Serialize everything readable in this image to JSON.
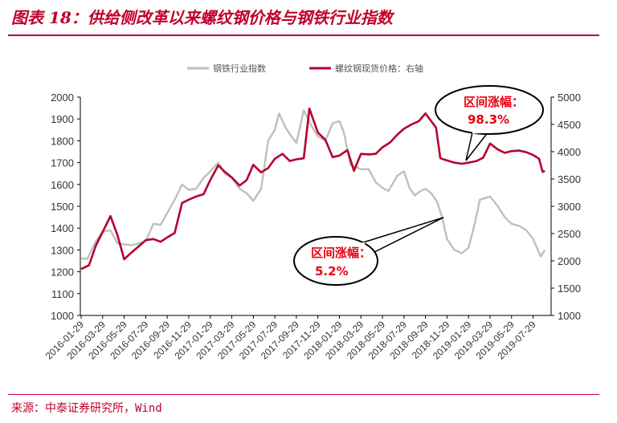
{
  "header": {
    "title": "图表 18：供给侧改革以来螺纹钢价格与钢铁行业指数"
  },
  "footer": {
    "source": "来源：中泰证券研究所，Wind"
  },
  "annotations": [
    {
      "label": "区间涨幅：",
      "value": "98.3%"
    },
    {
      "label": "区间涨幅：",
      "value": "5.2%"
    }
  ],
  "colors": {
    "index_line": "#bfbfbf",
    "rebar_line": "#b5002e",
    "accent": "#c0002b",
    "annotation_text": "#e60012"
  },
  "chart_data": {
    "type": "line",
    "x": [
      "2016-01-29",
      "2016-03-29",
      "2016-05-29",
      "2016-07-29",
      "2016-09-29",
      "2016-11-29",
      "2017-01-29",
      "2017-03-29",
      "2017-05-29",
      "2017-07-29",
      "2017-09-29",
      "2017-11-29",
      "2018-01-29",
      "2018-03-29",
      "2018-05-29",
      "2018-07-29",
      "2018-09-29",
      "2018-11-29",
      "2019-01-29",
      "2019-03-29",
      "2019-05-29",
      "2019-07-29"
    ],
    "y_left": {
      "ticks": [
        1000,
        1100,
        1200,
        1300,
        1400,
        1500,
        1600,
        1700,
        1800,
        1900,
        2000
      ],
      "range": [
        1000,
        2000
      ]
    },
    "y_right": {
      "ticks": [
        1000,
        1500,
        2000,
        2500,
        3000,
        3500,
        4000,
        4500,
        5000
      ],
      "range": [
        1000,
        5000
      ]
    },
    "legend_position": "top-center",
    "grid": false,
    "series": [
      {
        "name": "钢铁行业指数",
        "axis": "left",
        "color": "#bfbfbf",
        "values": [
          [
            "2016-01-29",
            1262
          ],
          [
            "2016-02-15",
            1258
          ],
          [
            "2016-03-10",
            1340
          ],
          [
            "2016-03-29",
            1385
          ],
          [
            "2016-04-20",
            1390
          ],
          [
            "2016-05-10",
            1330
          ],
          [
            "2016-05-29",
            1325
          ],
          [
            "2016-06-20",
            1322
          ],
          [
            "2016-07-10",
            1330
          ],
          [
            "2016-07-29",
            1340
          ],
          [
            "2016-08-20",
            1420
          ],
          [
            "2016-09-10",
            1415
          ],
          [
            "2016-09-29",
            1470
          ],
          [
            "2016-10-20",
            1530
          ],
          [
            "2016-11-10",
            1600
          ],
          [
            "2016-11-29",
            1575
          ],
          [
            "2016-12-20",
            1580
          ],
          [
            "2017-01-10",
            1630
          ],
          [
            "2017-01-29",
            1660
          ],
          [
            "2017-02-20",
            1700
          ],
          [
            "2017-03-10",
            1650
          ],
          [
            "2017-03-29",
            1630
          ],
          [
            "2017-04-20",
            1580
          ],
          [
            "2017-05-10",
            1560
          ],
          [
            "2017-05-29",
            1525
          ],
          [
            "2017-06-20",
            1580
          ],
          [
            "2017-07-10",
            1800
          ],
          [
            "2017-07-29",
            1850
          ],
          [
            "2017-08-10",
            1925
          ],
          [
            "2017-08-29",
            1860
          ],
          [
            "2017-09-15",
            1820
          ],
          [
            "2017-09-29",
            1790
          ],
          [
            "2017-10-20",
            1940
          ],
          [
            "2017-11-10",
            1870
          ],
          [
            "2017-11-29",
            1820
          ],
          [
            "2017-12-20",
            1800
          ],
          [
            "2018-01-10",
            1880
          ],
          [
            "2018-01-29",
            1890
          ],
          [
            "2018-02-10",
            1840
          ],
          [
            "2018-02-28",
            1690
          ],
          [
            "2018-03-29",
            1670
          ],
          [
            "2018-04-20",
            1670
          ],
          [
            "2018-05-10",
            1610
          ],
          [
            "2018-05-29",
            1585
          ],
          [
            "2018-06-15",
            1570
          ],
          [
            "2018-07-10",
            1640
          ],
          [
            "2018-07-29",
            1660
          ],
          [
            "2018-08-15",
            1580
          ],
          [
            "2018-08-29",
            1550
          ],
          [
            "2018-09-15",
            1570
          ],
          [
            "2018-09-29",
            1580
          ],
          [
            "2018-10-15",
            1560
          ],
          [
            "2018-11-01",
            1520
          ],
          [
            "2018-11-15",
            1450
          ],
          [
            "2018-11-29",
            1350
          ],
          [
            "2018-12-20",
            1300
          ],
          [
            "2019-01-10",
            1285
          ],
          [
            "2019-01-29",
            1310
          ],
          [
            "2019-02-15",
            1420
          ],
          [
            "2019-03-01",
            1530
          ],
          [
            "2019-03-29",
            1545
          ],
          [
            "2019-04-20",
            1500
          ],
          [
            "2019-05-10",
            1450
          ],
          [
            "2019-05-29",
            1420
          ],
          [
            "2019-06-20",
            1410
          ],
          [
            "2019-07-10",
            1390
          ],
          [
            "2019-07-29",
            1350
          ],
          [
            "2019-08-20",
            1270
          ],
          [
            "2019-08-31",
            1300
          ]
        ]
      },
      {
        "name": "螺纹钢现货价格：右轴",
        "axis": "right",
        "color": "#b5002e",
        "values": [
          [
            "2016-01-29",
            1850
          ],
          [
            "2016-02-20",
            1920
          ],
          [
            "2016-03-10",
            2280
          ],
          [
            "2016-03-29",
            2530
          ],
          [
            "2016-04-20",
            2820
          ],
          [
            "2016-05-10",
            2470
          ],
          [
            "2016-05-29",
            2030
          ],
          [
            "2016-06-20",
            2160
          ],
          [
            "2016-07-10",
            2270
          ],
          [
            "2016-07-29",
            2380
          ],
          [
            "2016-08-20",
            2400
          ],
          [
            "2016-09-10",
            2350
          ],
          [
            "2016-09-29",
            2430
          ],
          [
            "2016-10-20",
            2510
          ],
          [
            "2016-11-10",
            3060
          ],
          [
            "2016-11-29",
            3120
          ],
          [
            "2016-12-20",
            3180
          ],
          [
            "2017-01-10",
            3220
          ],
          [
            "2017-01-29",
            3480
          ],
          [
            "2017-02-20",
            3750
          ],
          [
            "2017-03-10",
            3630
          ],
          [
            "2017-03-29",
            3530
          ],
          [
            "2017-04-20",
            3380
          ],
          [
            "2017-05-10",
            3480
          ],
          [
            "2017-05-29",
            3760
          ],
          [
            "2017-06-20",
            3620
          ],
          [
            "2017-07-10",
            3700
          ],
          [
            "2017-07-29",
            3870
          ],
          [
            "2017-08-20",
            3960
          ],
          [
            "2017-09-10",
            3830
          ],
          [
            "2017-09-29",
            3860
          ],
          [
            "2017-10-20",
            3880
          ],
          [
            "2017-11-05",
            4790
          ],
          [
            "2017-11-29",
            4350
          ],
          [
            "2017-12-20",
            4220
          ],
          [
            "2018-01-10",
            3900
          ],
          [
            "2018-01-29",
            3930
          ],
          [
            "2018-02-20",
            4030
          ],
          [
            "2018-03-10",
            3650
          ],
          [
            "2018-03-29",
            3960
          ],
          [
            "2018-04-20",
            3950
          ],
          [
            "2018-05-10",
            3960
          ],
          [
            "2018-05-29",
            4080
          ],
          [
            "2018-06-20",
            4170
          ],
          [
            "2018-07-10",
            4310
          ],
          [
            "2018-07-29",
            4420
          ],
          [
            "2018-08-20",
            4500
          ],
          [
            "2018-09-10",
            4560
          ],
          [
            "2018-09-29",
            4700
          ],
          [
            "2018-10-15",
            4560
          ],
          [
            "2018-10-29",
            4440
          ],
          [
            "2018-11-10",
            3880
          ],
          [
            "2018-11-29",
            3840
          ],
          [
            "2018-12-20",
            3800
          ],
          [
            "2019-01-10",
            3780
          ],
          [
            "2019-01-29",
            3800
          ],
          [
            "2019-02-20",
            3830
          ],
          [
            "2019-03-10",
            3890
          ],
          [
            "2019-03-29",
            4150
          ],
          [
            "2019-04-20",
            4040
          ],
          [
            "2019-05-10",
            3980
          ],
          [
            "2019-05-29",
            4010
          ],
          [
            "2019-06-20",
            4020
          ],
          [
            "2019-07-10",
            3990
          ],
          [
            "2019-07-29",
            3940
          ],
          [
            "2019-08-15",
            3870
          ],
          [
            "2019-08-25",
            3630
          ],
          [
            "2019-08-31",
            3650
          ]
        ]
      }
    ]
  }
}
